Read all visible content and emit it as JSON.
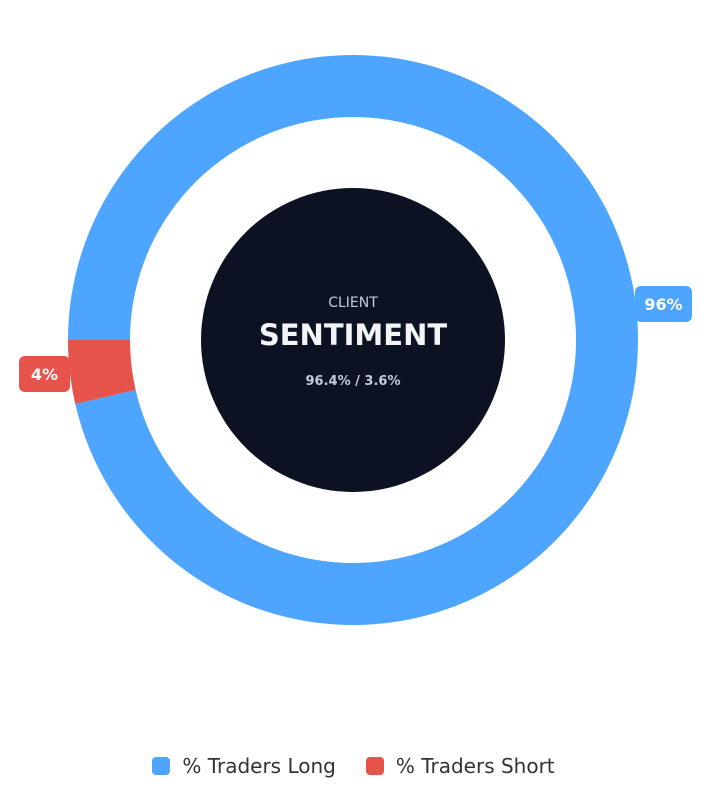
{
  "chart_data": {
    "type": "pie",
    "style": "donut",
    "categories": [
      "% Traders Long",
      "% Traders Short"
    ],
    "values": [
      96.4,
      3.6
    ],
    "data_labels": [
      "96%",
      "4%"
    ],
    "colors": [
      "#4ea5ff",
      "#e5534b"
    ],
    "legend_position": "bottom",
    "center": {
      "subtitle": "CLIENT",
      "title": "SENTIMENT",
      "ratio": "96.4% / 3.6%"
    }
  },
  "legend": {
    "items": [
      {
        "label": "% Traders Long",
        "color": "#4ea5ff"
      },
      {
        "label": "% Traders Short",
        "color": "#e5534b"
      }
    ]
  }
}
